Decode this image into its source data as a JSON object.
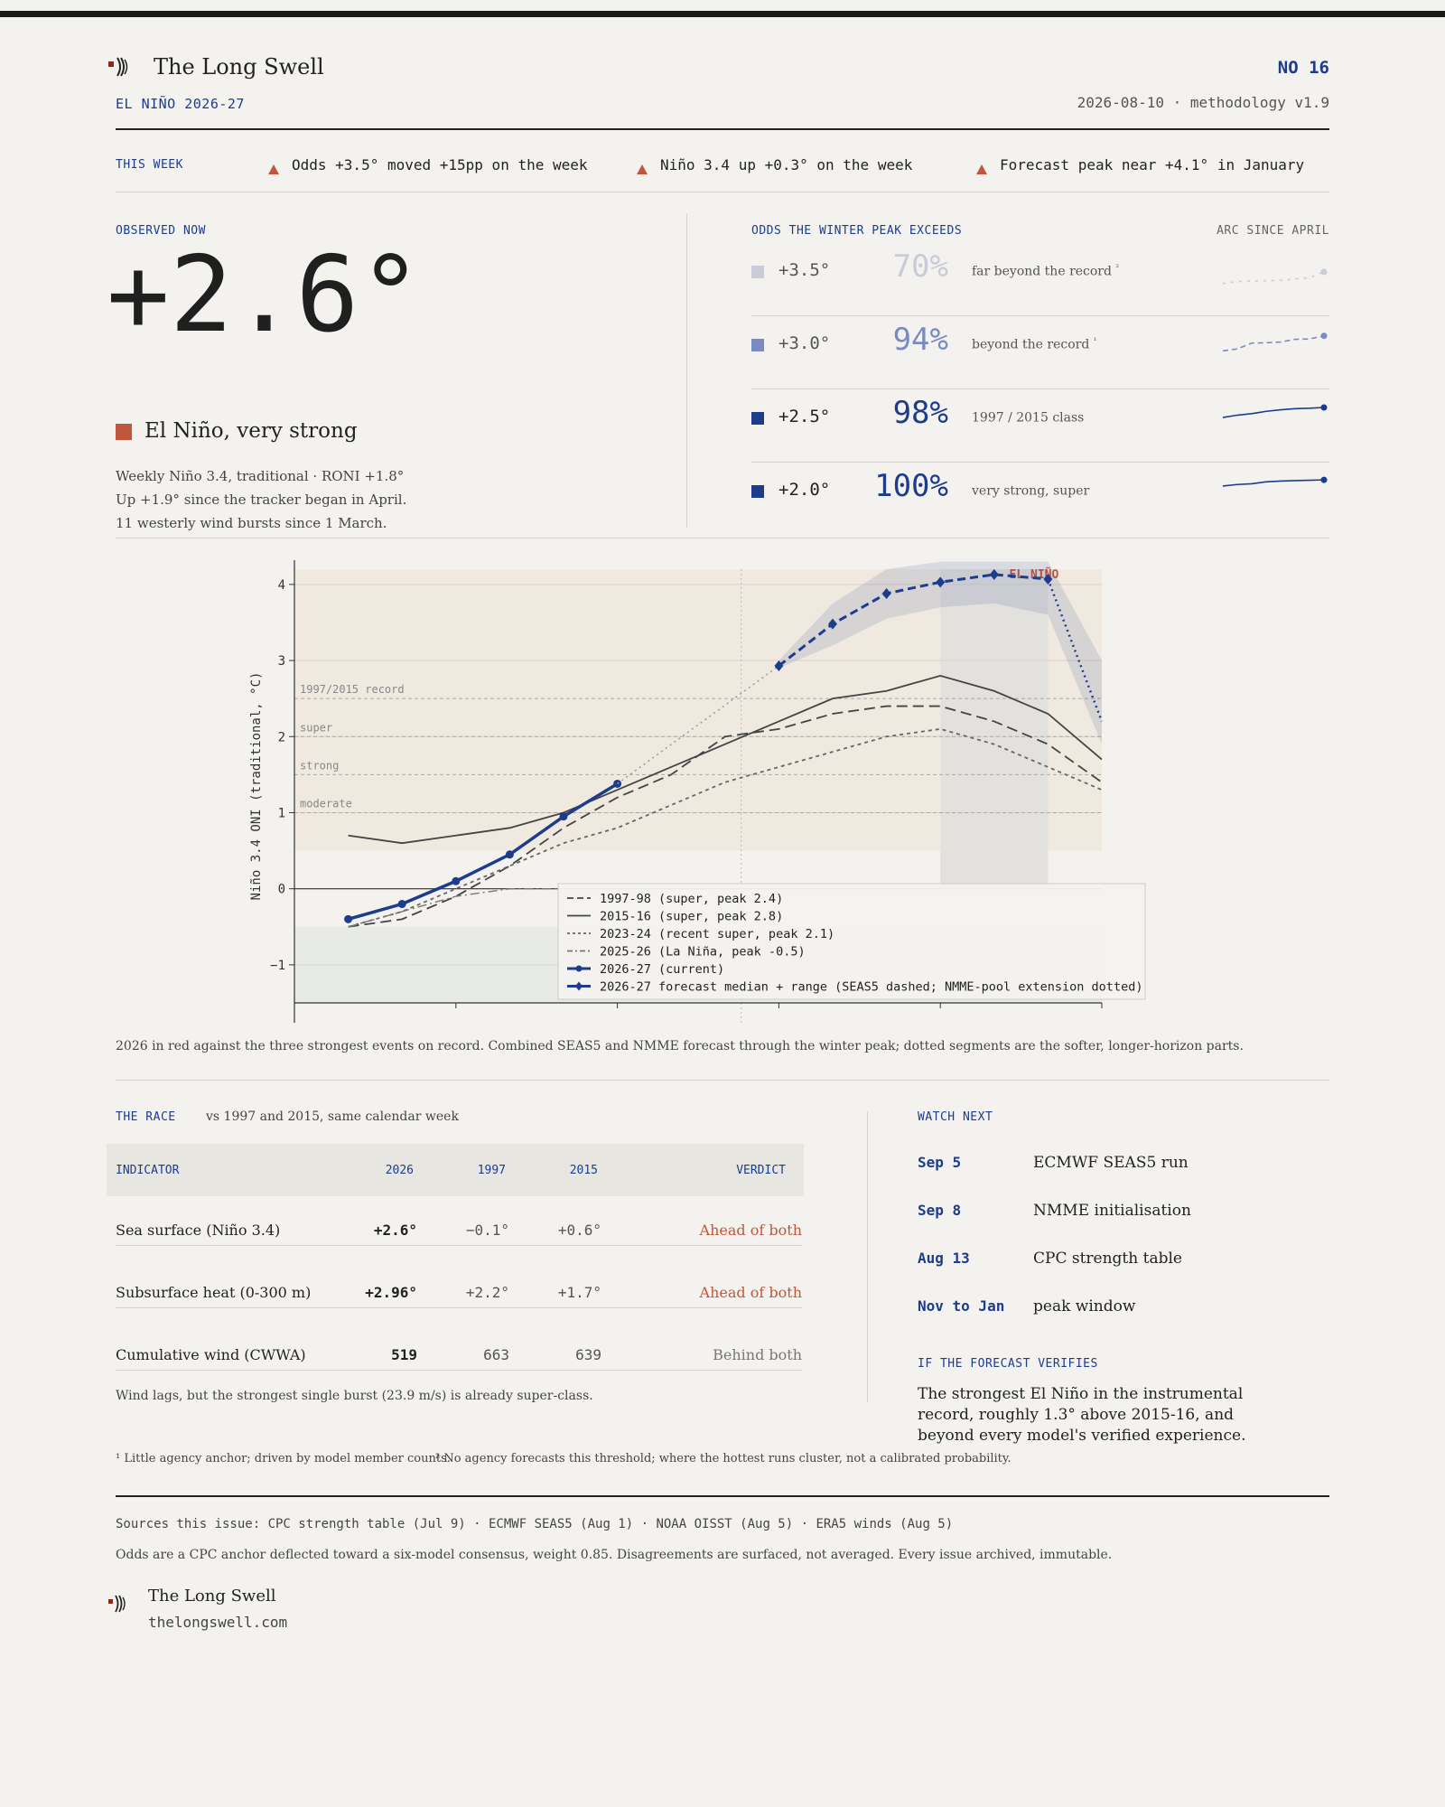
{
  "brand": {
    "name": "The Long Swell",
    "issue": "NO 16",
    "subtitle": "EL NIÑO 2026-27",
    "dateline": "2026-08-10 · methodology v1.9",
    "site": "thelongswell.com",
    "logo_icon": "swell-waves-icon"
  },
  "this_week": {
    "label": "THIS WEEK",
    "items": [
      "Odds +3.5° moved +15pp on the week",
      "Niño 3.4 up +0.3° on the week",
      "Forecast peak near +4.1° in January"
    ],
    "arrow_icon": "triangle-up-icon"
  },
  "observed": {
    "label": "OBSERVED NOW",
    "value": "+2.6°",
    "category": "El Niño, very strong",
    "category_color": "#c0573c",
    "notes": [
      "Weekly Niño 3.4, traditional · RONI +1.8°",
      "Up +1.9° since the tracker began in April.",
      "11 westerly wind bursts since 1 March."
    ]
  },
  "odds": {
    "label": "ODDS THE WINTER PEAK EXCEEDS",
    "arc_label": "ARC SINCE APRIL",
    "rows": [
      {
        "threshold": "+3.5°",
        "pct": "70%",
        "desc": "far beyond the record",
        "sup": "²",
        "color": "#c9cbd8",
        "arc": [
          0.4,
          0.45,
          0.46,
          0.47,
          0.48,
          0.52,
          0.55,
          0.7
        ],
        "dashed": true
      },
      {
        "threshold": "+3.0°",
        "pct": "94%",
        "desc": "beyond the record",
        "sup": "¹",
        "color": "#7a8bc4",
        "arc": [
          0.55,
          0.6,
          0.75,
          0.76,
          0.78,
          0.85,
          0.86,
          0.94
        ],
        "dashed": true
      },
      {
        "threshold": "+2.5°",
        "pct": "98%",
        "desc": "1997 / 2015 class",
        "sup": "",
        "color": "#1e3c8c",
        "arc": [
          0.72,
          0.78,
          0.82,
          0.88,
          0.92,
          0.95,
          0.96,
          0.98
        ],
        "dashed": false
      },
      {
        "threshold": "+2.0°",
        "pct": "100%",
        "desc": "very strong, super",
        "sup": "",
        "color": "#1e3c8c",
        "arc": [
          0.84,
          0.88,
          0.9,
          0.95,
          0.97,
          0.98,
          0.99,
          1.0
        ],
        "dashed": false
      }
    ]
  },
  "chart_data": {
    "type": "line",
    "ylabel": "Niño 3.4 ONI (traditional, °C)",
    "ylim": [
      -1.5,
      4.2
    ],
    "yticks": [
      -1,
      0,
      1,
      2,
      3,
      4
    ],
    "x_range": [
      0,
      15
    ],
    "thresholds": [
      {
        "label": "1997/2015 record",
        "value": 2.5
      },
      {
        "label": "super",
        "value": 2.0
      },
      {
        "label": "strong",
        "value": 1.5
      },
      {
        "label": "moderate",
        "value": 1.0
      }
    ],
    "annotation": "EL NIÑO",
    "series": [
      {
        "name": "1997-98 (super, peak 2.4)",
        "style": "dashed",
        "x": [
          1,
          2,
          3,
          4,
          5,
          6,
          7,
          8,
          9,
          10,
          11,
          12,
          13,
          14,
          15
        ],
        "values": [
          -0.5,
          -0.4,
          -0.1,
          0.3,
          0.8,
          1.2,
          1.5,
          2.0,
          2.1,
          2.3,
          2.4,
          2.4,
          2.2,
          1.9,
          1.4
        ]
      },
      {
        "name": "2015-16 (super, peak 2.8)",
        "style": "solid",
        "x": [
          1,
          2,
          3,
          4,
          5,
          6,
          7,
          8,
          9,
          10,
          11,
          12,
          13,
          14,
          15
        ],
        "values": [
          0.7,
          0.6,
          0.7,
          0.8,
          1.0,
          1.3,
          1.6,
          1.9,
          2.2,
          2.5,
          2.6,
          2.8,
          2.6,
          2.3,
          1.7
        ]
      },
      {
        "name": "2023-24 (recent super, peak 2.1)",
        "style": "dotted",
        "x": [
          1,
          2,
          3,
          4,
          5,
          6,
          7,
          8,
          9,
          10,
          11,
          12,
          13,
          14,
          15
        ],
        "values": [
          -0.5,
          -0.3,
          0.0,
          0.3,
          0.6,
          0.8,
          1.1,
          1.4,
          1.6,
          1.8,
          2.0,
          2.1,
          1.9,
          1.6,
          1.3
        ]
      },
      {
        "name": "2025-26 (La Niña, peak -0.5)",
        "style": "dashdot",
        "x": [
          1,
          2,
          3,
          4,
          5
        ],
        "values": [
          -0.5,
          -0.3,
          -0.1,
          0.0,
          0.0
        ]
      },
      {
        "name": "2026-27 (current)",
        "style": "current",
        "x": [
          1,
          2,
          3,
          4,
          5,
          6
        ],
        "values": [
          -0.4,
          -0.2,
          0.1,
          0.45,
          0.95,
          1.38
        ]
      },
      {
        "name": "2026-27 forecast median + range (SEAS5 dashed; NMME-pool extension dotted)",
        "style": "forecast",
        "x": [
          9,
          10,
          11,
          12,
          13,
          14
        ],
        "values": [
          2.93,
          3.48,
          3.88,
          4.03,
          4.13,
          4.07
        ],
        "lower": [
          2.9,
          3.2,
          3.55,
          3.7,
          3.75,
          3.6
        ],
        "upper": [
          3.0,
          3.75,
          4.2,
          4.3,
          4.3,
          4.3
        ],
        "extension_x": [
          14,
          15
        ],
        "extension_values": [
          4.07,
          2.2
        ],
        "bridge_x": [
          6,
          9
        ],
        "bridge_values": [
          1.38,
          2.93
        ]
      }
    ]
  },
  "chart_caption": "2026 in red against the three strongest events on record. Combined SEAS5 and NMME forecast through the winter peak; dotted segments are the softer, longer-horizon parts.",
  "race": {
    "label": "THE RACE",
    "sub": "vs 1997 and 2015, same calendar week",
    "headers": [
      "INDICATOR",
      "2026",
      "1997",
      "2015",
      "VERDICT"
    ],
    "rows": [
      {
        "indicator": "Sea surface (Niño 3.4)",
        "y2026": "+2.6°",
        "y1997": "−0.1°",
        "y2015": "+0.6°",
        "verdict": "Ahead of both",
        "verdict_color": "#c0573c"
      },
      {
        "indicator": "Subsurface heat (0-300 m)",
        "y2026": "+2.96°",
        "y1997": "+2.2°",
        "y2015": "+1.7°",
        "verdict": "Ahead of both",
        "verdict_color": "#c0573c"
      },
      {
        "indicator": "Cumulative wind (CWWA)",
        "y2026": "519",
        "y1997": "663",
        "y2015": "639",
        "verdict": "Behind both",
        "verdict_color": "#777777"
      }
    ],
    "note": "Wind lags, but the strongest single burst (23.9 m/s) is already super-class."
  },
  "watch": {
    "label": "WATCH NEXT",
    "items": [
      {
        "date": "Sep 5",
        "text": "ECMWF SEAS5 run"
      },
      {
        "date": "Sep 8",
        "text": "NMME initialisation"
      },
      {
        "date": "Aug 13",
        "text": "CPC strength table"
      },
      {
        "date": "Nov to Jan",
        "text": "peak window"
      }
    ],
    "verify_label": "IF THE FORECAST VERIFIES",
    "verify_text": "The strongest El Niño in the instrumental record, roughly 1.3° above 2015-16, and beyond every model's verified experience."
  },
  "footnotes": [
    "¹ Little agency anchor; driven by model member counts.",
    "² No agency forecasts this threshold; where the hottest runs cluster, not a calibrated probability."
  ],
  "sources": "Sources this issue: CPC strength table (Jul 9) · ECMWF SEAS5 (Aug 1) · NOAA OISST (Aug 5) · ERA5 winds (Aug 5)",
  "method_note": "Odds are a CPC anchor deflected toward a six-model consensus, weight 0.85. Disagreements are surfaced, not averaged. Every issue archived, immutable."
}
